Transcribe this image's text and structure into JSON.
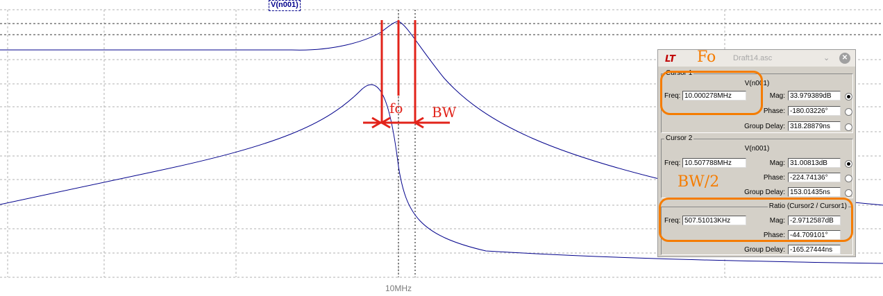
{
  "plot": {
    "trace_label": "V(n001)",
    "x_tick_label": "10MHz"
  },
  "colors": {
    "trace": "#00008b",
    "grid": "#b0b0b0",
    "annotation_red": "#e2231a",
    "annotation_orange": "#f57c00"
  },
  "window": {
    "logo_icon": "ltspice-logo-icon",
    "title": "Draft14.asc",
    "chevron_icon": "chevron-down-icon",
    "close_icon": "close-icon"
  },
  "cursor1": {
    "legend": "Cursor 1",
    "node": "V(n001)",
    "freq_label": "Freq:",
    "freq_value": "10.000278MHz",
    "mag_label": "Mag:",
    "mag_value": "33.979389dB",
    "phase_label": "Phase:",
    "phase_value": "-180.03226°",
    "gd_label": "Group Delay:",
    "gd_value": "318.28879ns"
  },
  "cursor2": {
    "legend": "Cursor 2",
    "node": "V(n001)",
    "freq_label": "Freq:",
    "freq_value": "10.507788MHz",
    "mag_label": "Mag:",
    "mag_value": "31.00813dB",
    "phase_label": "Phase:",
    "phase_value": "-224.74136°",
    "gd_label": "Group Delay:",
    "gd_value": "153.01435ns"
  },
  "ratio": {
    "legend": "Ratio (Cursor2 / Cursor1)",
    "freq_label": "Freq:",
    "freq_value": "507.51013KHz",
    "mag_label": "Mag:",
    "mag_value": "-2.9712587dB",
    "phase_label": "Phase:",
    "phase_value": "-44.709101°",
    "gd_label": "Group Delay:",
    "gd_value": "-165.27444ns"
  },
  "annotations": {
    "fo_small": "fo",
    "bw": "BW",
    "fo_big": "Fo",
    "bw_half": "BW/2"
  }
}
